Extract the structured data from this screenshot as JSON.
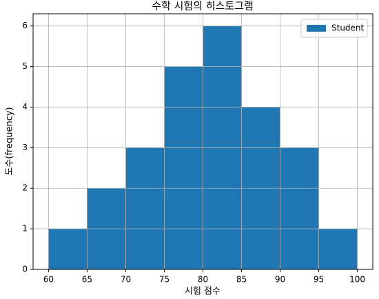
{
  "chart_data": {
    "type": "histogram",
    "title": "수학 시험의 히스토그램",
    "x_label": "시험 점수",
    "y_label": "도수(frequency)",
    "bins": [
      60,
      65,
      70,
      75,
      80,
      85,
      90,
      95,
      100
    ],
    "series": [
      {
        "name": "Student",
        "color": "#1f77b4",
        "counts": [
          1,
          2,
          3,
          5,
          6,
          4,
          3,
          1
        ]
      }
    ],
    "xlim": [
      58,
      102
    ],
    "ylim": [
      0,
      6.3
    ],
    "xticks": [
      60,
      65,
      70,
      75,
      80,
      85,
      90,
      95,
      100
    ],
    "yticks": [
      0,
      1,
      2,
      3,
      4,
      5,
      6
    ],
    "grid": true,
    "legend": "upper right"
  }
}
